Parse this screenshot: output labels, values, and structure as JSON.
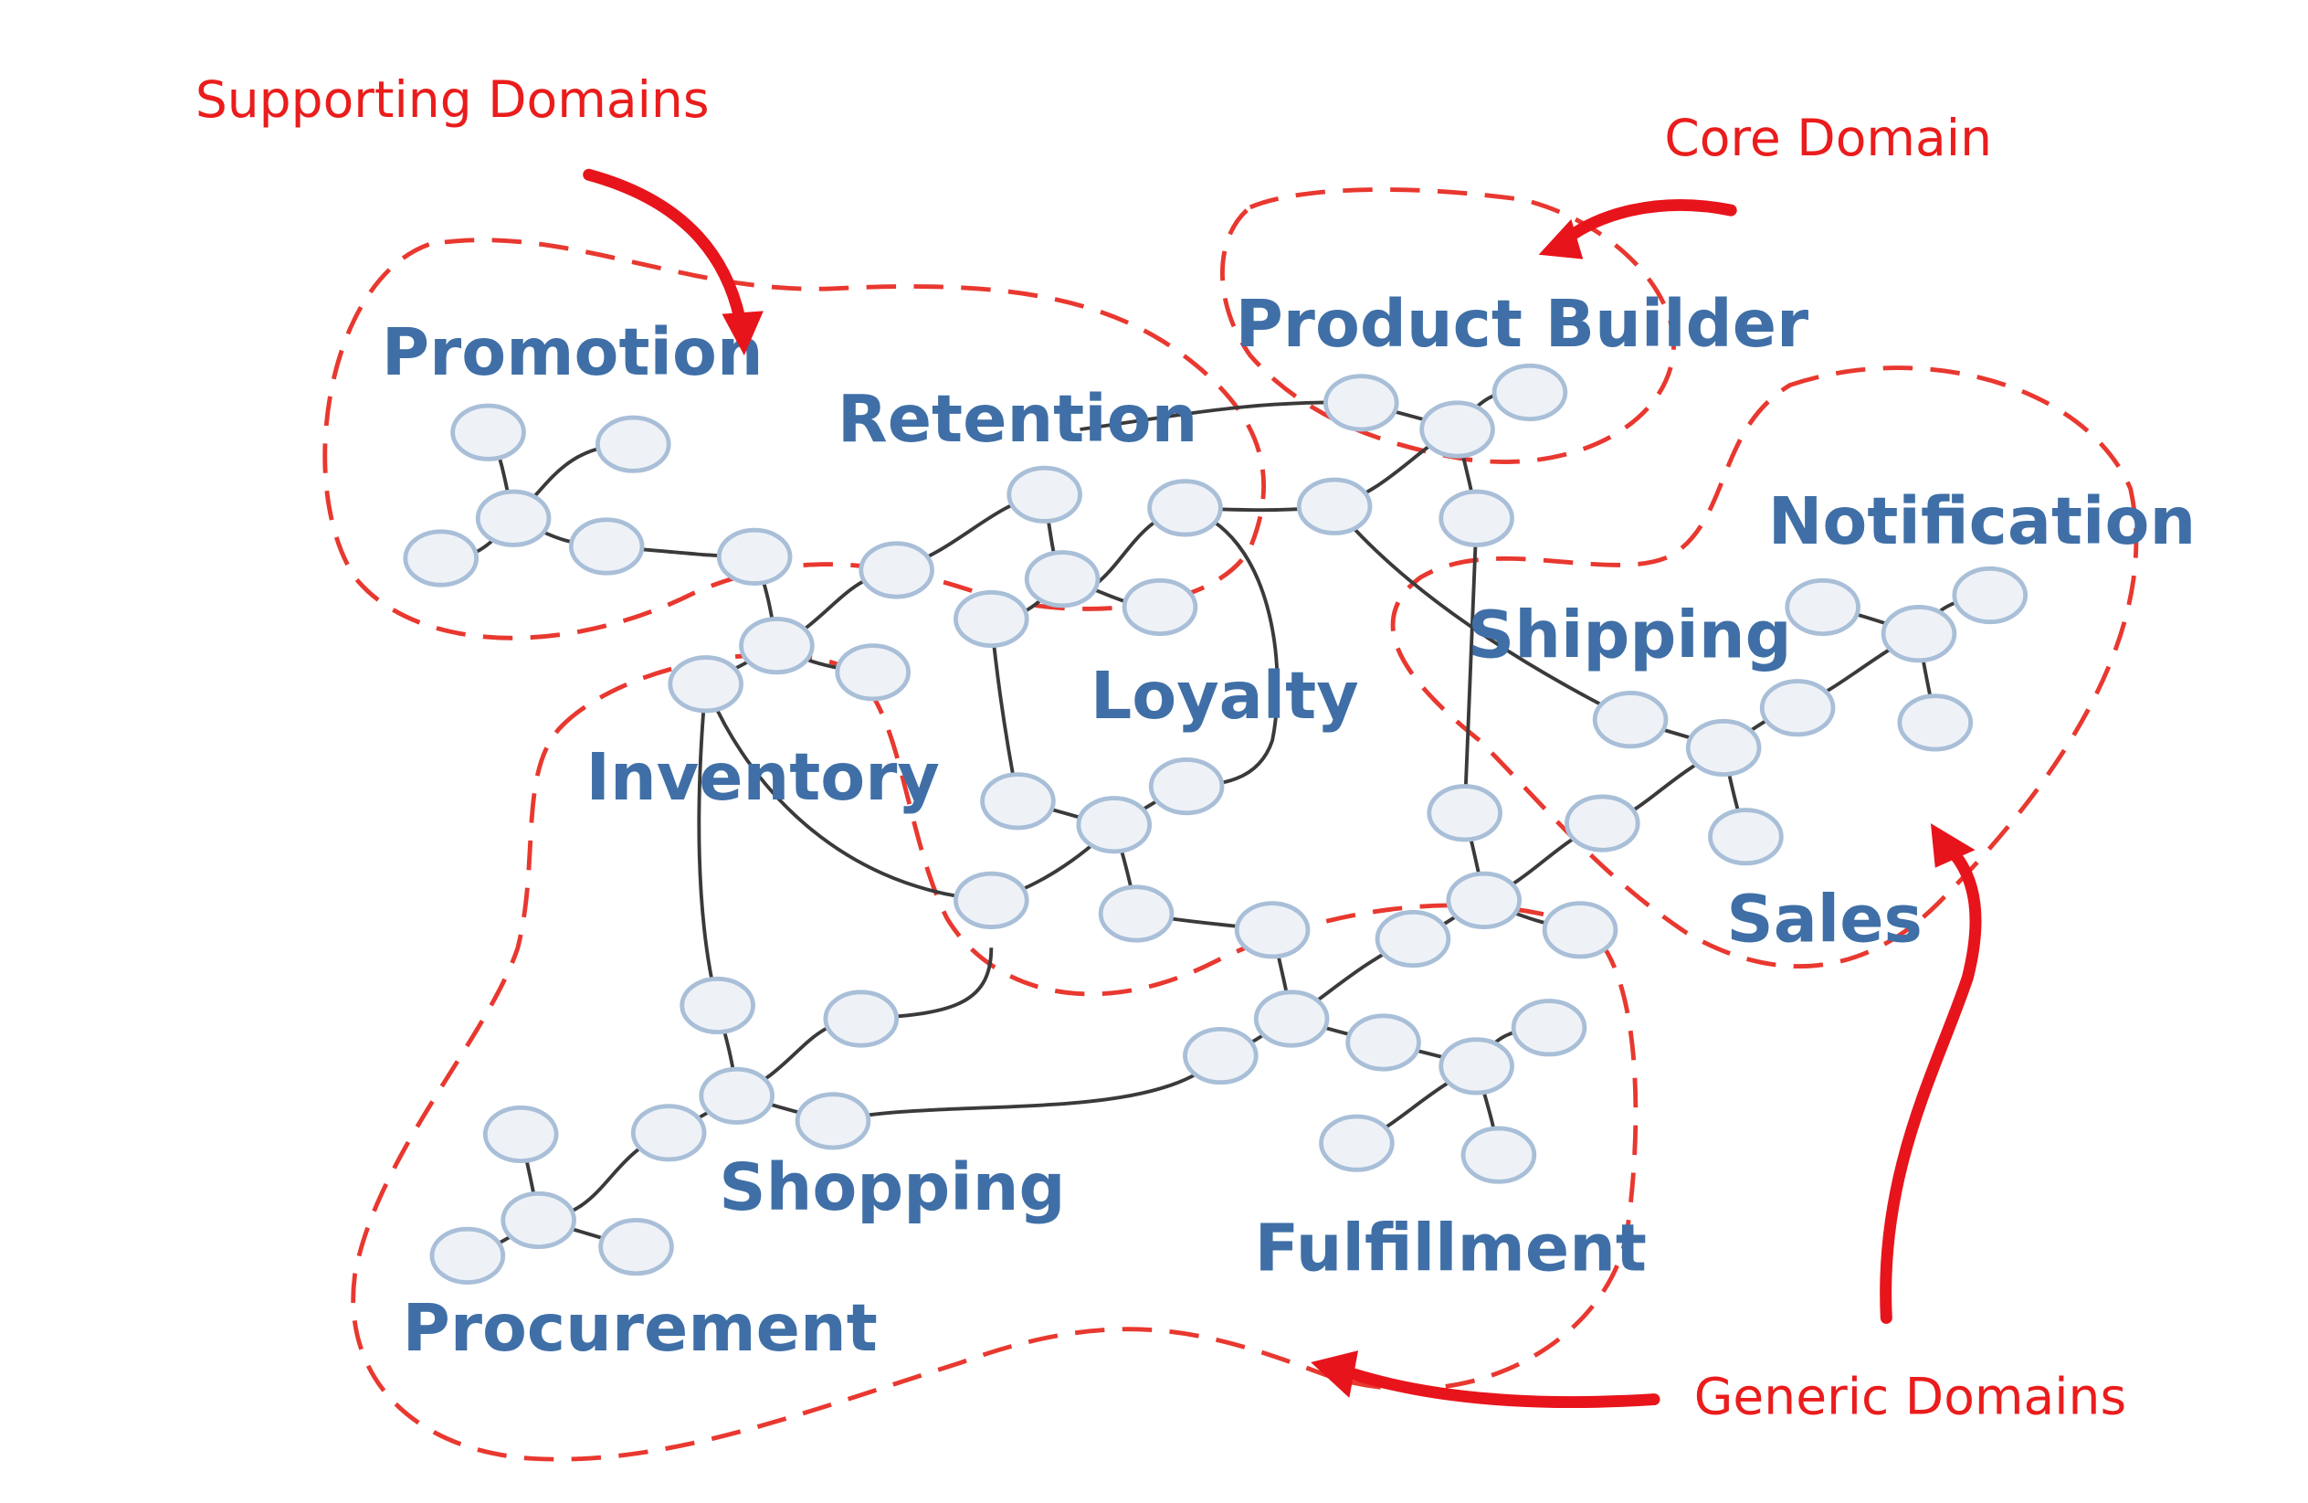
{
  "annotations": {
    "supporting": "Supporting Domains",
    "core": "Core Domain",
    "generic": "Generic Domains"
  },
  "domains": {
    "promotion": "Promotion",
    "retention": "Retention",
    "product_builder": "Product Builder",
    "notification": "Notification",
    "shipping": "Shipping",
    "loyalty": "Loyalty",
    "inventory": "Inventory",
    "sales": "Sales",
    "shopping": "Shopping",
    "fulfillment": "Fulfillment",
    "procurement": "Procurement"
  },
  "colors": {
    "domain_label": "#3f6fa6",
    "annotation": "#ea1c1c",
    "boundary": "#e8382f",
    "node_fill": "#eef2f7",
    "node_stroke": "#a9bfd8",
    "edge": "#3a3a3a"
  }
}
